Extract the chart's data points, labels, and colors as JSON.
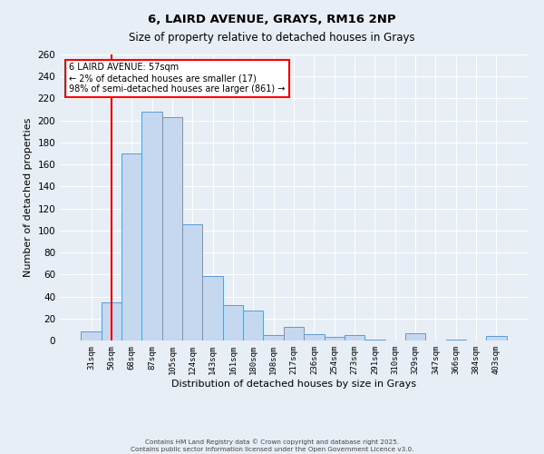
{
  "title": "6, LAIRD AVENUE, GRAYS, RM16 2NP",
  "subtitle": "Size of property relative to detached houses in Grays",
  "xlabel": "Distribution of detached houses by size in Grays",
  "ylabel": "Number of detached properties",
  "bar_labels": [
    "31sqm",
    "50sqm",
    "68sqm",
    "87sqm",
    "105sqm",
    "124sqm",
    "143sqm",
    "161sqm",
    "180sqm",
    "198sqm",
    "217sqm",
    "236sqm",
    "254sqm",
    "273sqm",
    "291sqm",
    "310sqm",
    "329sqm",
    "347sqm",
    "366sqm",
    "384sqm",
    "403sqm"
  ],
  "bar_values": [
    8,
    35,
    170,
    208,
    203,
    106,
    59,
    32,
    27,
    5,
    12,
    6,
    3,
    5,
    1,
    0,
    7,
    0,
    1,
    0,
    4
  ],
  "bar_color": "#c5d8f0",
  "bar_edge_color": "#5b9bd5",
  "ylim": [
    0,
    260
  ],
  "yticks": [
    0,
    20,
    40,
    60,
    80,
    100,
    120,
    140,
    160,
    180,
    200,
    220,
    240,
    260
  ],
  "red_line_x": 1.5,
  "annotation_title": "6 LAIRD AVENUE: 57sqm",
  "annotation_line1": "← 2% of detached houses are smaller (17)",
  "annotation_line2": "98% of semi-detached houses are larger (861) →",
  "footer1": "Contains HM Land Registry data © Crown copyright and database right 2025.",
  "footer2": "Contains public sector information licensed under the Open Government Licence v3.0.",
  "background_color": "#e8eef5",
  "grid_color": "#ffffff",
  "title_fontsize": 9.5,
  "subtitle_fontsize": 8.5
}
